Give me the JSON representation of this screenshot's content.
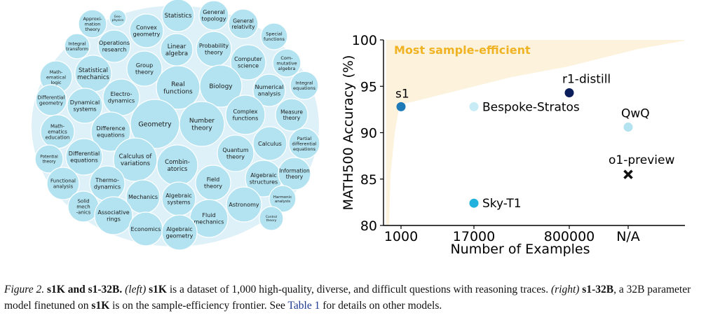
{
  "bubble_chart": {
    "fill_color": "#b3e3f0",
    "topics": [
      {
        "lines": [
          "Statistics"
        ]
      },
      {
        "lines": [
          "General",
          "topology"
        ]
      },
      {
        "lines": [
          "Approxi-",
          "mation",
          "theory"
        ]
      },
      {
        "lines": [
          "Geo-",
          "physics"
        ]
      },
      {
        "lines": [
          "Convex",
          "geometry"
        ]
      },
      {
        "lines": [
          "General",
          "relativity"
        ]
      },
      {
        "lines": [
          "Special",
          "functions"
        ]
      },
      {
        "lines": [
          "Integral",
          "transform"
        ]
      },
      {
        "lines": [
          "Operations",
          "research"
        ]
      },
      {
        "lines": [
          "Linear",
          "algebra"
        ]
      },
      {
        "lines": [
          "Probability",
          "theory"
        ]
      },
      {
        "lines": [
          "Computer",
          "science"
        ]
      },
      {
        "lines": [
          "Com-",
          "mutative",
          "algebra"
        ]
      },
      {
        "lines": [
          "Math-",
          "ematical",
          "logic"
        ]
      },
      {
        "lines": [
          "Statistical",
          "mechanics"
        ]
      },
      {
        "lines": [
          "Group",
          "theory"
        ]
      },
      {
        "lines": [
          "Real",
          "functions"
        ]
      },
      {
        "lines": [
          "Biology"
        ]
      },
      {
        "lines": [
          "Numerical",
          "analysis"
        ]
      },
      {
        "lines": [
          "Integral",
          "equations"
        ]
      },
      {
        "lines": [
          "Differential",
          "geometry"
        ]
      },
      {
        "lines": [
          "Dynamical",
          "systems"
        ]
      },
      {
        "lines": [
          "Electro-",
          "dynamics"
        ]
      },
      {
        "lines": [
          "Geometry"
        ]
      },
      {
        "lines": [
          "Number",
          "theory"
        ]
      },
      {
        "lines": [
          "Complex",
          "functions"
        ]
      },
      {
        "lines": [
          "Measure",
          "theory"
        ]
      },
      {
        "lines": [
          "Math-",
          "ematics",
          "education"
        ]
      },
      {
        "lines": [
          "Difference",
          "equations"
        ]
      },
      {
        "lines": [
          "Calculus"
        ]
      },
      {
        "lines": [
          "Partial",
          "differential",
          "equations"
        ]
      },
      {
        "lines": [
          "Potential",
          "theory"
        ]
      },
      {
        "lines": [
          "Differential",
          "equations"
        ]
      },
      {
        "lines": [
          "Calculus of",
          "variations"
        ]
      },
      {
        "lines": [
          "Combin-",
          "atorics"
        ]
      },
      {
        "lines": [
          "Quantum",
          "theory"
        ]
      },
      {
        "lines": [
          "Algebraic",
          "structures"
        ]
      },
      {
        "lines": [
          "Information",
          "theory"
        ]
      },
      {
        "lines": [
          "Functional",
          "analysis"
        ]
      },
      {
        "lines": [
          "Thermo-",
          "dynamics"
        ]
      },
      {
        "lines": [
          "Field",
          "theory"
        ]
      },
      {
        "lines": [
          "Solid",
          "mech",
          "-anics"
        ]
      },
      {
        "lines": [
          "Mechanics"
        ]
      },
      {
        "lines": [
          "Algebraic",
          "systems"
        ]
      },
      {
        "lines": [
          "Harmonic",
          "analysis"
        ]
      },
      {
        "lines": [
          "Associative",
          "rings"
        ]
      },
      {
        "lines": [
          "Astronomy"
        ]
      },
      {
        "lines": [
          "Fluid",
          "mechanics"
        ]
      },
      {
        "lines": [
          "Control",
          "theory"
        ]
      },
      {
        "lines": [
          "Economics"
        ]
      },
      {
        "lines": [
          "Algebraic",
          "geometry"
        ]
      }
    ]
  },
  "chart_data": {
    "type": "scatter",
    "title": "",
    "xlabel": "Number of Examples",
    "ylabel": "MATH500 Accuracy (%)",
    "x_ticks": [
      "1000",
      "17000",
      "800000",
      "N/A"
    ],
    "y_ticks": [
      "80",
      "85",
      "90",
      "95",
      "100"
    ],
    "ylim": [
      80,
      100
    ],
    "frontier_label": "Most sample-efficient",
    "frontier_label_color": "#f0b323",
    "frontier_fill": "#fdf2dc",
    "points": [
      {
        "label": "s1",
        "x": "1000",
        "y": 92.8,
        "color": "#1f7ab8",
        "marker": "circle"
      },
      {
        "label": "Bespoke-Stratos",
        "x": "17000",
        "y": 92.8,
        "color": "#c7ecf5",
        "marker": "circle"
      },
      {
        "label": "Sky-T1",
        "x": "17000",
        "y": 82.4,
        "color": "#20b2dd",
        "marker": "circle"
      },
      {
        "label": "r1-distill",
        "x": "800000",
        "y": 94.3,
        "color": "#0c1d5c",
        "marker": "circle"
      },
      {
        "label": "QwQ",
        "x": "N/A",
        "y": 90.6,
        "color": "#b3e3f0",
        "marker": "circle"
      },
      {
        "label": "o1-preview",
        "x": "N/A",
        "y": 85.5,
        "color": "#111111",
        "marker": "x"
      }
    ]
  },
  "caption": {
    "fig_label": "Figure 2.",
    "title": "s1K and s1-32B.",
    "left_tag": "(left)",
    "s1k_1": "s1K",
    "text_1": " is a dataset of 1,000 high-quality, diverse, and difficult questions with reasoning traces. ",
    "right_tag": "(right)",
    "s1_32b": "s1-32B",
    "text_2": ", a 32B parameter model finetuned on ",
    "s1k_2": "s1K",
    "text_3": " is on the sample-efficiency frontier. See ",
    "table_link": "Table 1",
    "text_4": " for details on other models."
  }
}
